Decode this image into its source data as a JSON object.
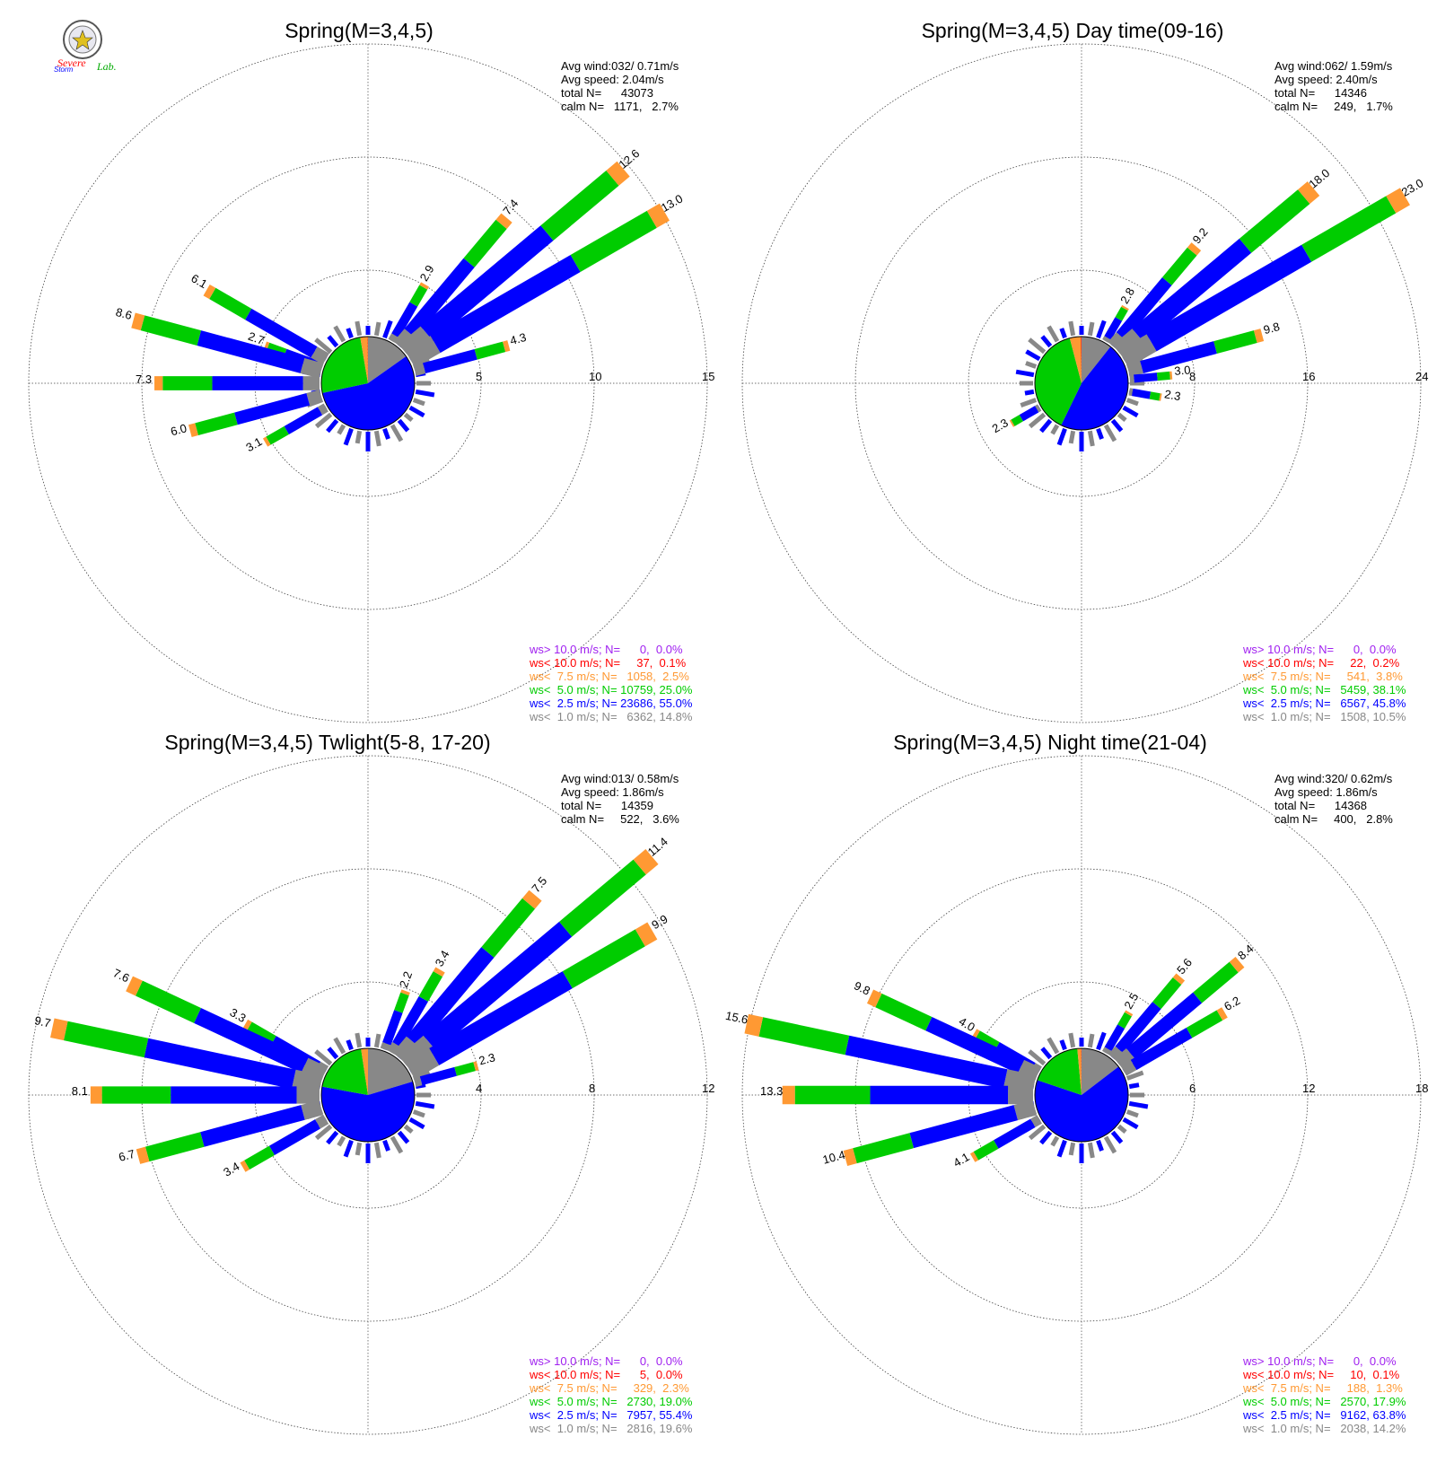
{
  "logo": {
    "line1": "Severe",
    "line2": "Storm",
    "line3": "Lab."
  },
  "colors": {
    "ws_gt_10": "#a020f0",
    "ws_lt_10": "#ff0000",
    "ws_lt_7_5": "#ff9933",
    "ws_lt_5": "#00cc00",
    "ws_lt_2_5": "#0000ff",
    "ws_lt_1": "#888888"
  },
  "chart_data": [
    {
      "type": "windrose",
      "title": "Spring(M=3,4,5)",
      "ring_max": 15,
      "ring_labels": [
        "5",
        "10",
        "15"
      ],
      "stats": [
        "Avg wind:032/ 0.71m/s",
        "Avg speed: 2.04m/s",
        "total N=      43073",
        "calm N=   1171,   2.7%"
      ],
      "legend": [
        "ws> 10.0 m/s; N=      0,  0.0%",
        "ws< 10.0 m/s; N=     37,  0.1%",
        "ws<  7.5 m/s; N=   1058,  2.5%",
        "ws<  5.0 m/s; N= 10759, 25.0%",
        "ws<  2.5 m/s; N= 23686, 55.0%",
        "ws<  1.0 m/s; N=   6362, 14.8%"
      ],
      "pie_percent": [
        14.8,
        55.0,
        25.0,
        2.5,
        0.1,
        0.0
      ],
      "petals": [
        {
          "dir": 30,
          "total": 2.9,
          "label": "2.9"
        },
        {
          "dir": 40,
          "total": 7.4,
          "label": "7.4"
        },
        {
          "dir": 50,
          "total": 12.6,
          "label": "12.6"
        },
        {
          "dir": 60,
          "total": 13.0,
          "label": "13.0"
        },
        {
          "dir": 75,
          "total": 4.3,
          "label": "4.3"
        },
        {
          "dir": 290,
          "total": 2.7,
          "label": "2.7"
        },
        {
          "dir": 300,
          "total": 6.1,
          "label": "6.1"
        },
        {
          "dir": 285,
          "total": 8.6,
          "label": "8.6"
        },
        {
          "dir": 270,
          "total": 7.3,
          "label": "7.3"
        },
        {
          "dir": 255,
          "total": 6.0,
          "label": "6.0"
        },
        {
          "dir": 240,
          "total": 3.1,
          "label": "3.1"
        }
      ]
    },
    {
      "type": "windrose",
      "title": "Spring(M=3,4,5) Day time(09-16)",
      "ring_max": 24,
      "ring_labels": [
        "8",
        "16",
        "24"
      ],
      "stats": [
        "Avg wind:062/ 1.59m/s",
        "Avg speed: 2.40m/s",
        "total N=      14346",
        "calm N=     249,   1.7%"
      ],
      "legend": [
        "ws> 10.0 m/s; N=      0,  0.0%",
        "ws< 10.0 m/s; N=     22,  0.2%",
        "ws<  7.5 m/s; N=     541,  3.8%",
        "ws<  5.0 m/s; N=   5459, 38.1%",
        "ws<  2.5 m/s; N=   6567, 45.8%",
        "ws<  1.0 m/s; N=   1508, 10.5%"
      ],
      "pie_percent": [
        10.5,
        45.8,
        38.1,
        3.8,
        0.2,
        0.0
      ],
      "petals": [
        {
          "dir": 30,
          "total": 2.8,
          "label": "2.8"
        },
        {
          "dir": 40,
          "total": 9.2,
          "label": "9.2"
        },
        {
          "dir": 50,
          "total": 18.0,
          "label": "18.0"
        },
        {
          "dir": 60,
          "total": 23.0,
          "label": "23.0"
        },
        {
          "dir": 75,
          "total": 9.8,
          "label": "9.8"
        },
        {
          "dir": 85,
          "total": 3.0,
          "label": "3.0"
        },
        {
          "dir": 100,
          "total": 2.3,
          "label": "2.3"
        },
        {
          "dir": 240,
          "total": 2.3,
          "label": "2.3"
        }
      ]
    },
    {
      "type": "windrose",
      "title": "Spring(M=3,4,5) Twlight(5-8, 17-20)",
      "ring_max": 12,
      "ring_labels": [
        "4",
        "8",
        "12"
      ],
      "stats": [
        "Avg wind:013/ 0.58m/s",
        "Avg speed: 1.86m/s",
        "total N=      14359",
        "calm N=     522,   3.6%"
      ],
      "legend": [
        "ws> 10.0 m/s; N=      0,  0.0%",
        "ws< 10.0 m/s; N=      5,  0.0%",
        "ws<  7.5 m/s; N=     329,  2.3%",
        "ws<  5.0 m/s; N=   2730, 19.0%",
        "ws<  2.5 m/s; N=   7957, 55.4%",
        "ws<  1.0 m/s; N=   2816, 19.6%"
      ],
      "pie_percent": [
        19.6,
        55.4,
        19.0,
        2.3,
        0.0,
        0.0
      ],
      "petals": [
        {
          "dir": 20,
          "total": 2.2,
          "label": "2.2"
        },
        {
          "dir": 30,
          "total": 3.4,
          "label": "3.4"
        },
        {
          "dir": 40,
          "total": 7.5,
          "label": "7.5"
        },
        {
          "dir": 50,
          "total": 11.4,
          "label": "11.4"
        },
        {
          "dir": 60,
          "total": 9.9,
          "label": "9.9"
        },
        {
          "dir": 75,
          "total": 2.3,
          "label": "2.3"
        },
        {
          "dir": 300,
          "total": 3.3,
          "label": "3.3"
        },
        {
          "dir": 295,
          "total": 7.6,
          "label": "7.6"
        },
        {
          "dir": 282,
          "total": 9.7,
          "label": "9.7"
        },
        {
          "dir": 270,
          "total": 8.1,
          "label": "8.1"
        },
        {
          "dir": 255,
          "total": 6.7,
          "label": "6.7"
        },
        {
          "dir": 240,
          "total": 3.4,
          "label": "3.4"
        }
      ]
    },
    {
      "type": "windrose",
      "title": "Spring(M=3,4,5) Night time(21-04)",
      "ring_max": 18,
      "ring_labels": [
        "6",
        "12",
        "18"
      ],
      "stats": [
        "Avg wind:320/ 0.62m/s",
        "Avg speed: 1.86m/s",
        "total N=      14368",
        "calm N=     400,   2.8%"
      ],
      "legend": [
        "ws> 10.0 m/s; N=      0,  0.0%",
        "ws< 10.0 m/s; N=     10,  0.1%",
        "ws<  7.5 m/s; N=     188,  1.3%",
        "ws<  5.0 m/s; N=   2570, 17.9%",
        "ws<  2.5 m/s; N=   9162, 63.8%",
        "ws<  1.0 m/s; N=   2038, 14.2%"
      ],
      "pie_percent": [
        14.2,
        63.8,
        17.9,
        1.3,
        0.1,
        0.0
      ],
      "petals": [
        {
          "dir": 30,
          "total": 2.5,
          "label": "2.5"
        },
        {
          "dir": 40,
          "total": 5.6,
          "label": "5.6"
        },
        {
          "dir": 50,
          "total": 8.4,
          "label": "8.4"
        },
        {
          "dir": 60,
          "total": 6.2,
          "label": "6.2"
        },
        {
          "dir": 300,
          "total": 4.0,
          "label": "4.0"
        },
        {
          "dir": 295,
          "total": 9.8,
          "label": "9.8"
        },
        {
          "dir": 282,
          "total": 15.6,
          "label": "15.6"
        },
        {
          "dir": 270,
          "total": 13.3,
          "label": "13.3"
        },
        {
          "dir": 255,
          "total": 10.4,
          "label": "10.4"
        },
        {
          "dir": 240,
          "total": 4.1,
          "label": "4.1"
        }
      ]
    }
  ]
}
